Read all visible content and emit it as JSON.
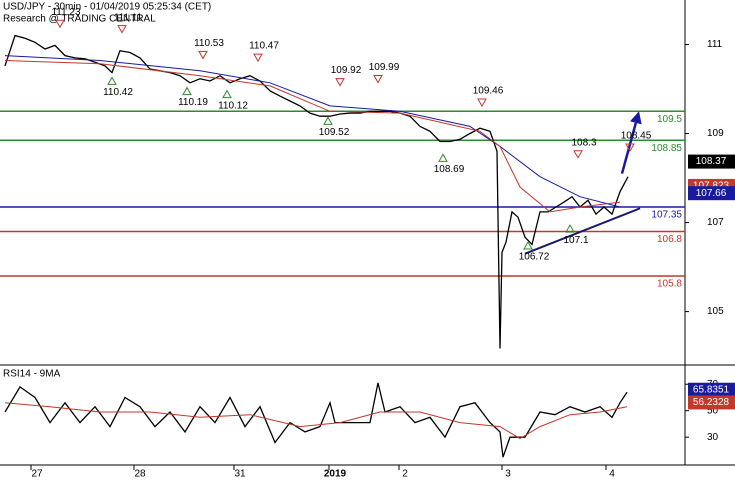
{
  "chart_data": [
    {
      "type": "line",
      "title": "USD/JPY - 30min - 01/04/2019 05:25:34 (CET)",
      "subtitle": "Research @ TRADING CENTRAL",
      "xlim": [
        0,
        685
      ],
      "ylim": [
        103.8,
        112.0
      ],
      "yticks": [
        105,
        107,
        109,
        111
      ],
      "series": [
        {
          "color": "#000000",
          "x": [
            5,
            15,
            25,
            35,
            45,
            55,
            65,
            75,
            85,
            95,
            105,
            112,
            120,
            130,
            140,
            150,
            160,
            170,
            180,
            190,
            200,
            210,
            220,
            230,
            240,
            250,
            260,
            270,
            280,
            290,
            300,
            310,
            320,
            330,
            340,
            350,
            360,
            370,
            380,
            390,
            400,
            410,
            420,
            430,
            440,
            450,
            460,
            470,
            480,
            490,
            497,
            500,
            502,
            506,
            512,
            518,
            525,
            532,
            540,
            548,
            556,
            564,
            572,
            580,
            588,
            596,
            604,
            612,
            620,
            628
          ],
          "values": [
            110.52,
            111.2,
            111.14,
            111.05,
            110.9,
            110.98,
            110.75,
            110.7,
            110.68,
            110.6,
            110.52,
            110.37,
            110.86,
            110.82,
            110.7,
            110.45,
            110.41,
            110.37,
            110.3,
            110.14,
            110.23,
            110.18,
            110.3,
            110.14,
            110.23,
            110.3,
            110.18,
            109.96,
            109.84,
            109.73,
            109.62,
            109.46,
            109.39,
            109.39,
            109.44,
            109.46,
            109.46,
            109.5,
            109.5,
            109.5,
            109.46,
            109.39,
            109.16,
            109.05,
            108.82,
            108.82,
            108.87,
            109.0,
            109.12,
            109.05,
            108.6,
            104.17,
            106.33,
            106.56,
            107.24,
            107.12,
            106.67,
            106.51,
            107.24,
            107.24,
            107.35,
            107.46,
            107.58,
            107.35,
            107.5,
            107.19,
            107.35,
            107.19,
            107.69,
            108.03
          ]
        },
        {
          "color": "#1a1aa0",
          "x": [
            5,
            100,
            200,
            270,
            330,
            400,
            470,
            500,
            540,
            580,
            620
          ],
          "values": [
            110.75,
            110.64,
            110.41,
            110.14,
            109.62,
            109.5,
            109.16,
            108.71,
            108.03,
            107.58,
            107.35
          ]
        },
        {
          "color": "#c0392b",
          "x": [
            5,
            100,
            200,
            270,
            330,
            400,
            480,
            500,
            520,
            550,
            580,
            620
          ],
          "values": [
            110.64,
            110.57,
            110.3,
            110.07,
            109.5,
            109.46,
            109.05,
            108.71,
            107.8,
            107.24,
            107.35,
            107.46
          ]
        }
      ],
      "levels": [
        {
          "value": 109.5,
          "color": "#2e8b2e"
        },
        {
          "value": 108.85,
          "color": "#2e8b2e"
        },
        {
          "value": 107.35,
          "color": "#1a1aa0"
        },
        {
          "value": 106.8,
          "color": "#c0392b"
        },
        {
          "value": 105.8,
          "color": "#c0392b"
        }
      ],
      "annotations": [
        {
          "x": 60,
          "value": 111.23,
          "kind": "high"
        },
        {
          "x": 122,
          "value": 111.11,
          "kind": "high"
        },
        {
          "x": 203,
          "value": 110.53,
          "kind": "high"
        },
        {
          "x": 258,
          "value": 110.47,
          "kind": "high"
        },
        {
          "x": 112,
          "value": 110.42,
          "kind": "low"
        },
        {
          "x": 187,
          "value": 110.19,
          "kind": "low"
        },
        {
          "x": 227,
          "value": 110.12,
          "kind": "low"
        },
        {
          "x": 340,
          "value": 109.92,
          "kind": "high"
        },
        {
          "x": 378,
          "value": 109.99,
          "kind": "high"
        },
        {
          "x": 328,
          "value": 109.52,
          "kind": "low"
        },
        {
          "x": 482,
          "value": 109.46,
          "kind": "high"
        },
        {
          "x": 443,
          "value": 108.69,
          "kind": "low"
        },
        {
          "x": 578,
          "value": 108.3,
          "kind": "high"
        },
        {
          "x": 630,
          "value": 108.45,
          "kind": "high"
        },
        {
          "x": 570,
          "value": 107.1,
          "kind": "low"
        },
        {
          "x": 528,
          "value": 106.72,
          "kind": "low"
        }
      ],
      "trendline": {
        "color": "#1a1a6e",
        "x": [
          525,
          640
        ],
        "values": [
          106.3,
          107.32
        ]
      },
      "arrow": {
        "color": "#1a1aa0",
        "x": [
          622,
          639
        ],
        "values": [
          108.1,
          109.5
        ]
      },
      "price_tags": [
        {
          "value": 108.37,
          "color": "#000000"
        },
        {
          "value": 107.823,
          "color": "#c0392b"
        },
        {
          "value": 107.66,
          "color": "#1a1aa0"
        }
      ]
    },
    {
      "type": "line",
      "title": "RSI14 - 9MA",
      "xlim": [
        0,
        685
      ],
      "ylim": [
        9,
        83
      ],
      "yticks": [
        30,
        50,
        70
      ],
      "xticks": [
        {
          "value": 37,
          "label": "27"
        },
        {
          "value": 140,
          "label": "28"
        },
        {
          "value": 240,
          "label": "31"
        },
        {
          "value": 335,
          "label": "2019"
        },
        {
          "value": 405,
          "label": "2"
        },
        {
          "value": 508,
          "label": "3"
        },
        {
          "value": 612,
          "label": "4"
        }
      ],
      "series": [
        {
          "color": "#000000",
          "x": [
            5,
            20,
            35,
            50,
            65,
            80,
            95,
            110,
            125,
            140,
            155,
            170,
            185,
            200,
            215,
            230,
            245,
            260,
            275,
            290,
            305,
            320,
            330,
            335,
            350,
            370,
            378,
            385,
            400,
            415,
            430,
            445,
            460,
            475,
            490,
            500,
            503,
            510,
            525,
            540,
            555,
            570,
            585,
            600,
            612,
            620,
            627
          ],
          "values": [
            49,
            68,
            60,
            41,
            56,
            41,
            53,
            38,
            60,
            53,
            38,
            49,
            34,
            53,
            41,
            60,
            38,
            53,
            26,
            41,
            34,
            38,
            56,
            41,
            41,
            41,
            71,
            49,
            53,
            41,
            45,
            30,
            53,
            56,
            41,
            34,
            15,
            30,
            30,
            49,
            47,
            53,
            49,
            53,
            45,
            56,
            64
          ]
        },
        {
          "color": "#c0392b",
          "x": [
            5,
            50,
            100,
            150,
            200,
            250,
            300,
            340,
            380,
            420,
            460,
            500,
            520,
            540,
            570,
            600,
            627
          ],
          "values": [
            56,
            53,
            49,
            49,
            45,
            47,
            38,
            41,
            49,
            49,
            41,
            38,
            29,
            38,
            47,
            49,
            53
          ]
        }
      ],
      "price_tags": [
        {
          "value": 65.8351,
          "color": "#1a1aa0"
        },
        {
          "value": 56.2328,
          "color": "#c0392b"
        }
      ]
    }
  ]
}
